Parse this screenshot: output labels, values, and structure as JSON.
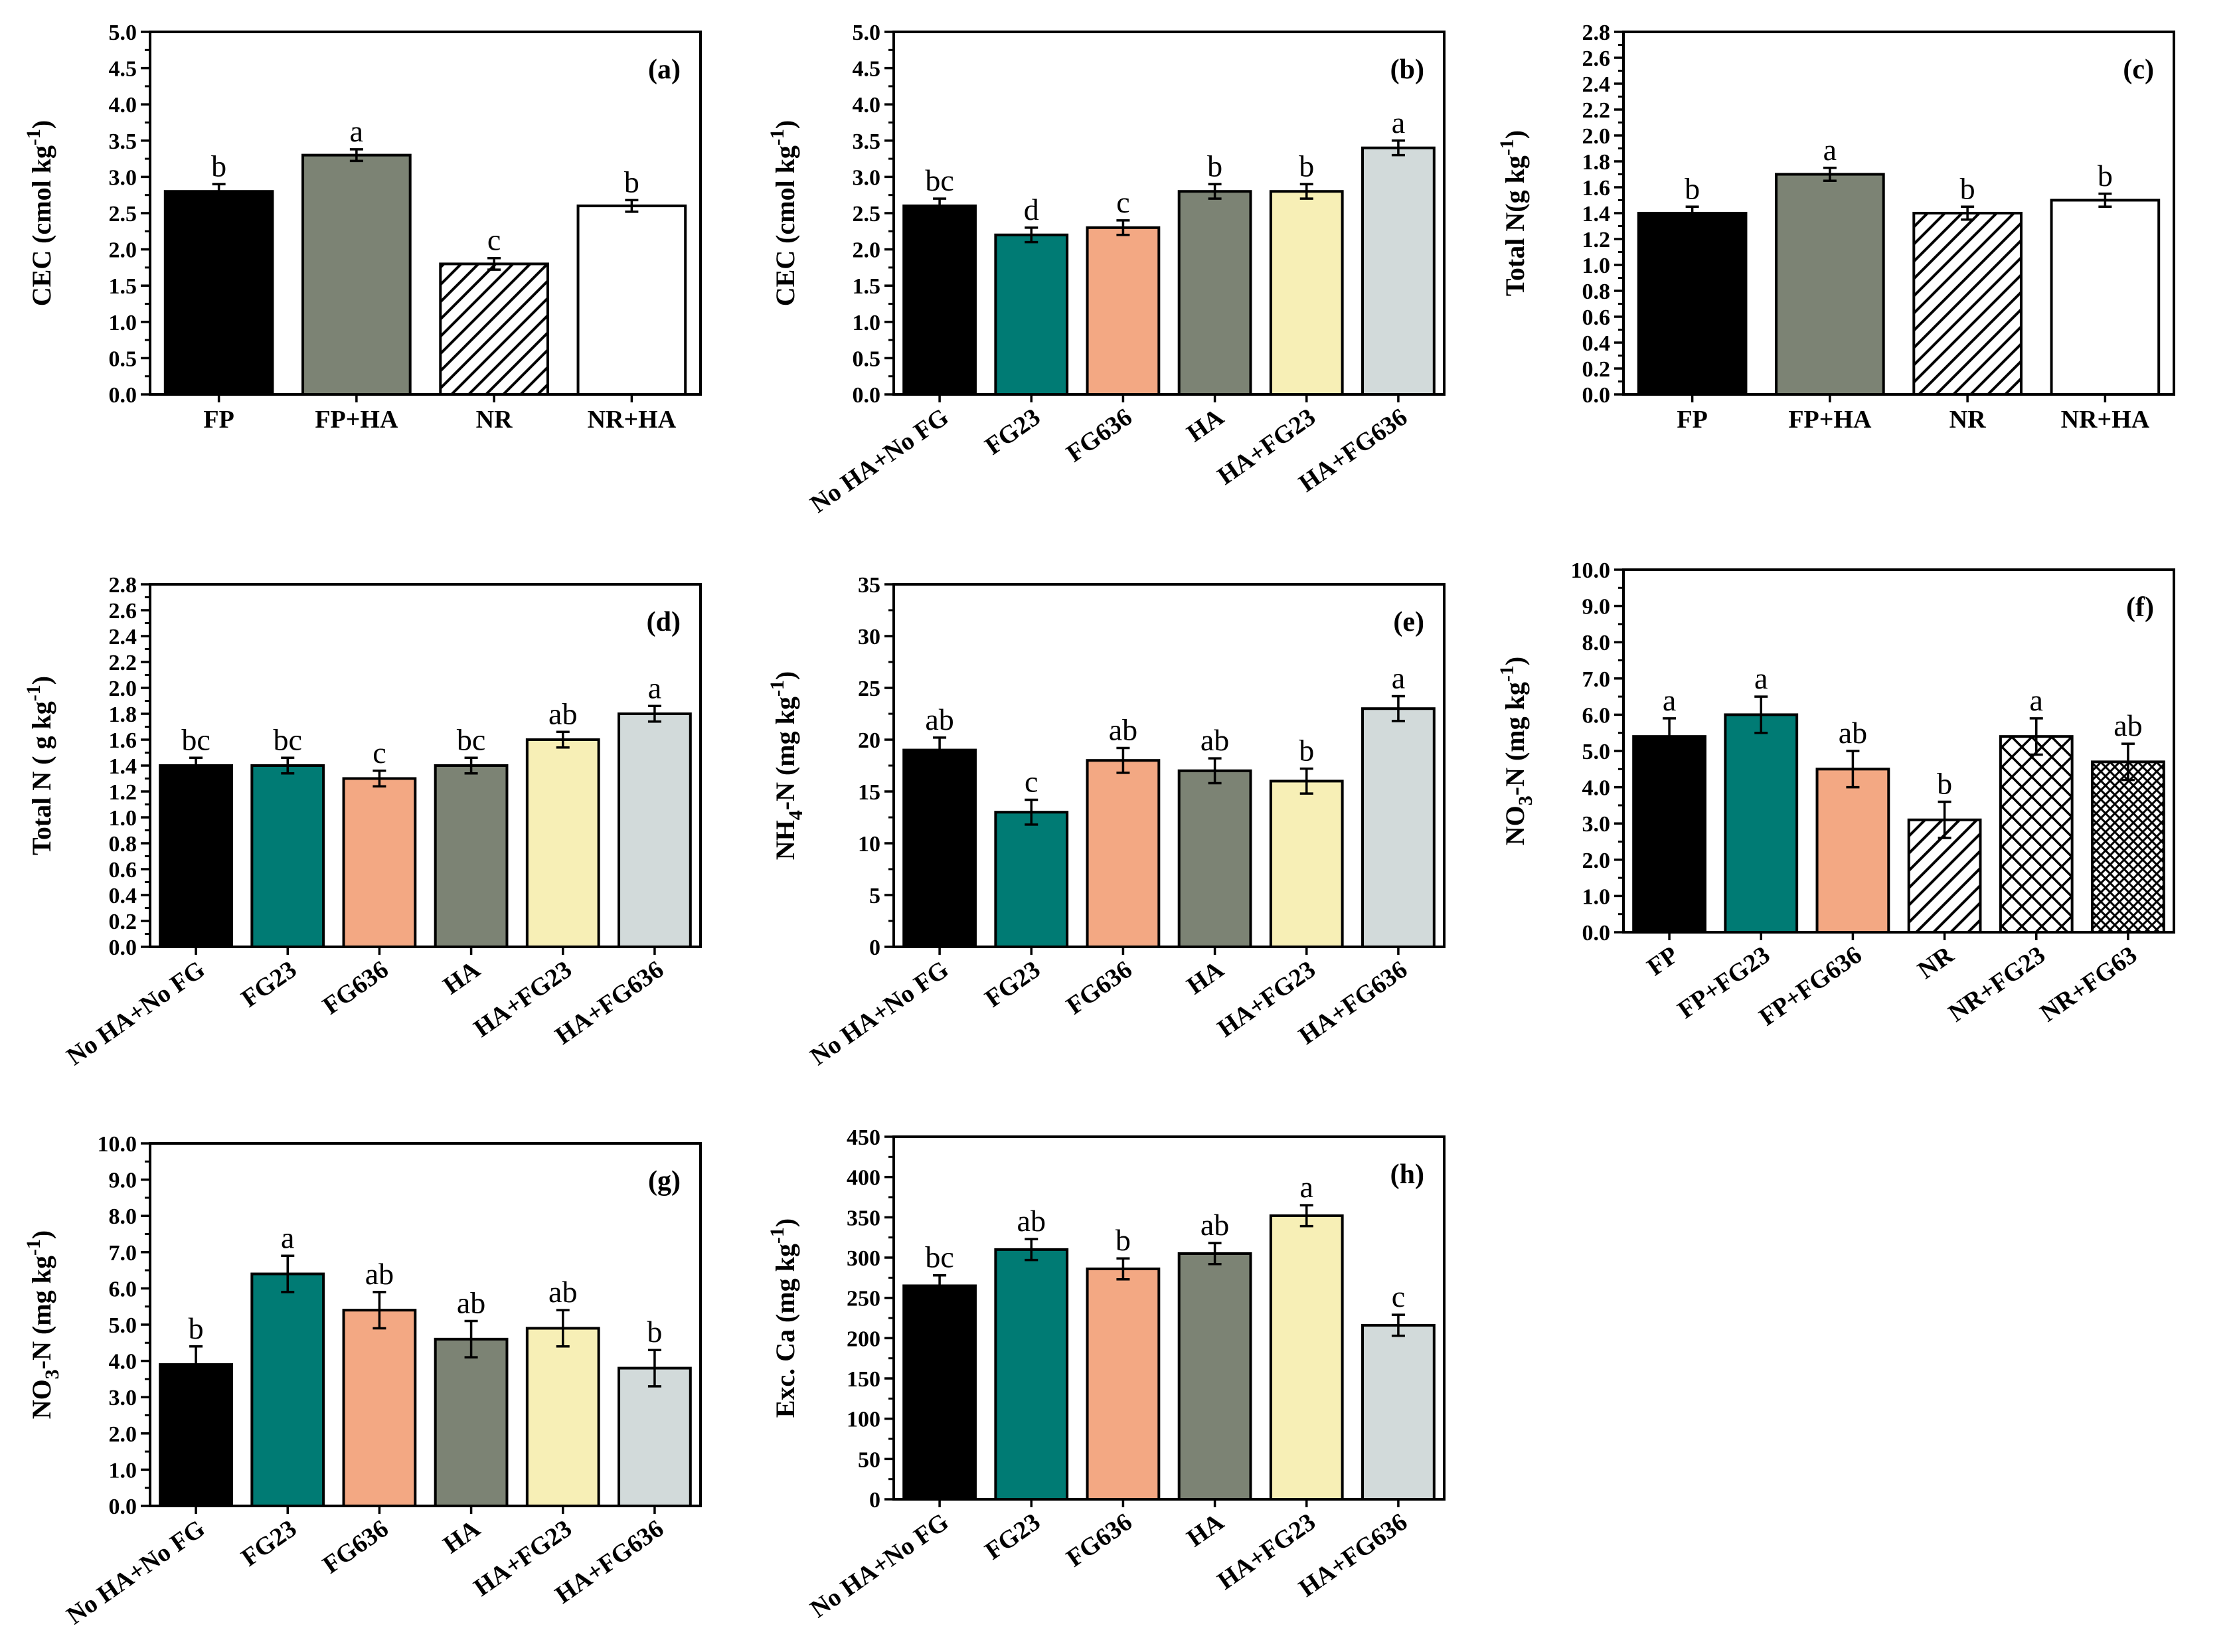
{
  "figure": {
    "colors": {
      "black": "#000000",
      "teal": "#007b74",
      "salmon": "#f3a883",
      "grey": "#7c8374",
      "cream": "#f7efb6",
      "lightgrey": "#d2dada",
      "white": "#ffffff",
      "axis": "#000000"
    }
  },
  "chart_data": [
    {
      "panel": "(a)",
      "type": "bar",
      "ylabel_main": "CEC (cmol kg",
      "ylabel_sup": "-1",
      "ylabel_end": ")",
      "ylim": [
        0,
        5.0
      ],
      "ticks": [
        "0.0",
        "0.5",
        "1.0",
        "1.5",
        "2.0",
        "2.5",
        "3.0",
        "3.5",
        "4.0",
        "4.5",
        "5.0"
      ],
      "categories": [
        "FP",
        "FP+HA",
        "NR",
        "NR+HA"
      ],
      "values": [
        2.8,
        3.3,
        1.8,
        2.6
      ],
      "errors": [
        0.1,
        0.08,
        0.08,
        0.08
      ],
      "letters": [
        "b",
        "a",
        "c",
        "b"
      ],
      "fills": [
        "black",
        "grey",
        "hatch",
        "white"
      ]
    },
    {
      "panel": "(b)",
      "type": "bar",
      "ylabel_main": "CEC (cmol kg",
      "ylabel_sup": "-1",
      "ylabel_end": ")",
      "ylim": [
        0,
        5.0
      ],
      "ticks": [
        "0.0",
        "0.5",
        "1.0",
        "1.5",
        "2.0",
        "2.5",
        "3.0",
        "3.5",
        "4.0",
        "4.5",
        "5.0"
      ],
      "categories": [
        "No HA+No FG",
        "FG23",
        "FG636",
        "HA",
        "HA+FG23",
        "HA+FG636"
      ],
      "values": [
        2.6,
        2.2,
        2.3,
        2.8,
        2.8,
        3.4
      ],
      "errors": [
        0.1,
        0.1,
        0.1,
        0.1,
        0.1,
        0.1
      ],
      "letters": [
        "bc",
        "d",
        "c",
        "b",
        "b",
        "a"
      ],
      "fills": [
        "black",
        "teal",
        "salmon",
        "grey",
        "cream",
        "lightgrey"
      ]
    },
    {
      "panel": "(c)",
      "type": "bar",
      "ylabel_main": "Total N(g kg",
      "ylabel_sup": "-1",
      "ylabel_end": ")",
      "ylim": [
        0,
        2.8
      ],
      "ticks": [
        "0.0",
        "0.2",
        "0.4",
        "0.6",
        "0.8",
        "1.0",
        "1.2",
        "1.4",
        "1.6",
        "1.8",
        "2.0",
        "2.2",
        "2.4",
        "2.6",
        "2.8"
      ],
      "categories": [
        "FP",
        "FP+HA",
        "NR",
        "NR+HA"
      ],
      "values": [
        1.4,
        1.7,
        1.4,
        1.5
      ],
      "errors": [
        0.05,
        0.05,
        0.05,
        0.05
      ],
      "letters": [
        "b",
        "a",
        "b",
        "b"
      ],
      "fills": [
        "black",
        "grey",
        "hatch",
        "white"
      ]
    },
    {
      "panel": "(d)",
      "type": "bar",
      "ylabel_main": "Total N ( g kg",
      "ylabel_sup": "-1",
      "ylabel_end": ")",
      "ylim": [
        0,
        2.8
      ],
      "ticks": [
        "0.0",
        "0.2",
        "0.4",
        "0.6",
        "0.8",
        "1.0",
        "1.2",
        "1.4",
        "1.6",
        "1.8",
        "2.0",
        "2.2",
        "2.4",
        "2.6",
        "2.8"
      ],
      "categories": [
        "No HA+No FG",
        "FG23",
        "FG636",
        "HA",
        "HA+FG23",
        "HA+FG636"
      ],
      "values": [
        1.4,
        1.4,
        1.3,
        1.4,
        1.6,
        1.8
      ],
      "errors": [
        0.06,
        0.06,
        0.06,
        0.06,
        0.06,
        0.06
      ],
      "letters": [
        "bc",
        "bc",
        "c",
        "bc",
        "ab",
        "a"
      ],
      "fills": [
        "black",
        "teal",
        "salmon",
        "grey",
        "cream",
        "lightgrey"
      ]
    },
    {
      "panel": "(e)",
      "type": "bar",
      "ylabel_main": "NH",
      "ylabel_sub": "4",
      "ylabel_rest": "-N (mg kg",
      "ylabel_sup": "-1",
      "ylabel_end": ")",
      "ylim": [
        0,
        35
      ],
      "ticks": [
        "0",
        "5",
        "10",
        "15",
        "20",
        "25",
        "30",
        "35"
      ],
      "categories": [
        "No HA+No FG",
        "FG23",
        "FG636",
        "HA",
        "HA+FG23",
        "HA+FG636"
      ],
      "values": [
        19,
        13,
        18,
        17,
        16,
        23
      ],
      "errors": [
        1.2,
        1.2,
        1.2,
        1.2,
        1.2,
        1.2
      ],
      "letters": [
        "ab",
        "c",
        "ab",
        "ab",
        "b",
        "a"
      ],
      "fills": [
        "black",
        "teal",
        "salmon",
        "grey",
        "cream",
        "lightgrey"
      ]
    },
    {
      "panel": "(f)",
      "type": "bar",
      "ylabel_main": "NO",
      "ylabel_sub": "3",
      "ylabel_rest": "-N (mg kg",
      "ylabel_sup": "-1",
      "ylabel_end": ")",
      "ylim": [
        0,
        10.0
      ],
      "ticks": [
        "0.0",
        "1.0",
        "2.0",
        "3.0",
        "4.0",
        "5.0",
        "6.0",
        "7.0",
        "8.0",
        "9.0",
        "10.0"
      ],
      "categories": [
        "FP",
        "FP+FG23",
        "FP+FG636",
        "NR",
        "NR+FG23",
        "NR+FG63"
      ],
      "values": [
        5.4,
        6.0,
        4.5,
        3.1,
        5.4,
        4.7
      ],
      "errors": [
        0.5,
        0.5,
        0.5,
        0.5,
        0.5,
        0.5
      ],
      "letters": [
        "a",
        "a",
        "ab",
        "b",
        "a",
        "ab"
      ],
      "fills": [
        "black",
        "teal",
        "salmon",
        "hatch",
        "crosshatch",
        "densecross"
      ]
    },
    {
      "panel": "(g)",
      "type": "bar",
      "ylabel_main": "NO",
      "ylabel_sub": "3",
      "ylabel_rest": "-N (mg kg",
      "ylabel_sup": "-1",
      "ylabel_end": ")",
      "ylim": [
        0,
        10.0
      ],
      "ticks": [
        "0.0",
        "1.0",
        "2.0",
        "3.0",
        "4.0",
        "5.0",
        "6.0",
        "7.0",
        "8.0",
        "9.0",
        "10.0"
      ],
      "categories": [
        "No HA+No FG",
        "FG23",
        "FG636",
        "HA",
        "HA+FG23",
        "HA+FG636"
      ],
      "values": [
        3.9,
        6.4,
        5.4,
        4.6,
        4.9,
        3.8
      ],
      "errors": [
        0.5,
        0.5,
        0.5,
        0.5,
        0.5,
        0.5
      ],
      "letters": [
        "b",
        "a",
        "ab",
        "ab",
        "ab",
        "b"
      ],
      "fills": [
        "black",
        "teal",
        "salmon",
        "grey",
        "cream",
        "lightgrey"
      ]
    },
    {
      "panel": "(h)",
      "type": "bar",
      "ylabel_main": "Exc. Ca (mg kg",
      "ylabel_sup": "-1",
      "ylabel_end": ")",
      "ylim": [
        0,
        450
      ],
      "ticks": [
        "0",
        "50",
        "100",
        "150",
        "200",
        "250",
        "300",
        "350",
        "400",
        "450"
      ],
      "categories": [
        "No HA+No FG",
        "FG23",
        "FG636",
        "HA",
        "HA+FG23",
        "HA+FG636"
      ],
      "values": [
        265,
        310,
        286,
        305,
        352,
        216
      ],
      "errors": [
        13,
        13,
        13,
        13,
        13,
        13
      ],
      "letters": [
        "bc",
        "ab",
        "b",
        "ab",
        "a",
        "c"
      ],
      "fills": [
        "black",
        "teal",
        "salmon",
        "grey",
        "cream",
        "lightgrey"
      ]
    }
  ]
}
